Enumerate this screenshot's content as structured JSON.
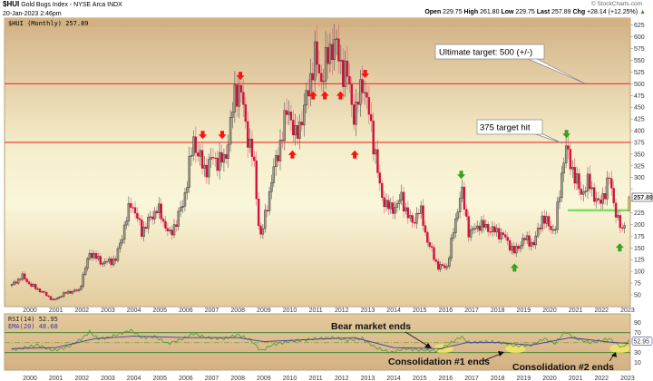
{
  "header": {
    "symbol": "$HUI",
    "description": "Gold Bugs Index - NYSE Arca INDX",
    "datetime": "20-Jan-2023 2:46pm",
    "copyright": "© StockCharts.com",
    "open_label": "Open",
    "open": "229.75",
    "high_label": "High",
    "high": "261.80",
    "low_label": "Low",
    "low": "229.75",
    "last_label": "Last",
    "last": "257.89",
    "chg_label": "Chg",
    "chg": "+28.14 (+12.25%)"
  },
  "legend": {
    "price": "$HUI (Monthly) 257.89",
    "rsi": "RSI(14) 52.95",
    "ema": "EMA(20) 48.68"
  },
  "callouts": {
    "ultimate": "Ultimate target: 500 (+/-)",
    "hit": "375 target hit",
    "bear": "Bear market ends",
    "cons1": "Consolidation #1 ends",
    "cons2": "Consolidation #2 ends"
  },
  "colors": {
    "up": "#a39d86",
    "down": "#d2103c",
    "target_line": "#f03030",
    "support_line": "#7ee05a",
    "rsi": "#4a9a2a",
    "ema": "#3b3aa0",
    "last": "#f0e070"
  },
  "chart_data": [
    {
      "type": "candlestick",
      "title": "$HUI (Monthly)",
      "period": "monthly",
      "ylim": [
        30,
        640
      ],
      "yticks": [
        50,
        75,
        100,
        125,
        150,
        175,
        200,
        225,
        250,
        275,
        300,
        325,
        350,
        375,
        400,
        425,
        450,
        475,
        500,
        525,
        550,
        575,
        600,
        625
      ],
      "xticks": [
        "2000",
        "2001",
        "2002",
        "2003",
        "2004",
        "2005",
        "2006",
        "2007",
        "2008",
        "2009",
        "2010",
        "2011",
        "2012",
        "2013",
        "2014",
        "2015",
        "2016",
        "2017",
        "2018",
        "2019",
        "2020",
        "2021",
        "2022",
        "2023"
      ],
      "last_value_label": "257.89",
      "last_bar": {
        "open": 229.75,
        "high": 261.8,
        "low": 229.75,
        "close": 257.89
      },
      "approx_close_anchors": [
        [
          1999.3,
          70
        ],
        [
          1999.7,
          90
        ],
        [
          2000.0,
          72
        ],
        [
          2000.5,
          55
        ],
        [
          2000.9,
          38
        ],
        [
          2001.4,
          55
        ],
        [
          2001.9,
          60
        ],
        [
          2002.3,
          140
        ],
        [
          2002.8,
          118
        ],
        [
          2003.3,
          125
        ],
        [
          2003.9,
          250
        ],
        [
          2004.3,
          185
        ],
        [
          2004.9,
          235
        ],
        [
          2005.4,
          175
        ],
        [
          2005.9,
          245
        ],
        [
          2006.3,
          380
        ],
        [
          2006.7,
          315
        ],
        [
          2007.0,
          340
        ],
        [
          2007.5,
          335
        ],
        [
          2007.9,
          480
        ],
        [
          2008.1,
          495
        ],
        [
          2008.3,
          410
        ],
        [
          2008.6,
          340
        ],
        [
          2008.85,
          170
        ],
        [
          2009.0,
          200
        ],
        [
          2009.3,
          295
        ],
        [
          2009.7,
          390
        ],
        [
          2009.95,
          455
        ],
        [
          2010.2,
          380
        ],
        [
          2010.6,
          455
        ],
        [
          2010.95,
          560
        ],
        [
          2011.2,
          510
        ],
        [
          2011.7,
          595
        ],
        [
          2011.95,
          540
        ],
        [
          2012.2,
          520
        ],
        [
          2012.5,
          425
        ],
        [
          2012.8,
          510
        ],
        [
          2013.0,
          450
        ],
        [
          2013.3,
          350
        ],
        [
          2013.5,
          262
        ],
        [
          2013.9,
          230
        ],
        [
          2014.3,
          255
        ],
        [
          2014.7,
          200
        ],
        [
          2015.0,
          235
        ],
        [
          2015.3,
          165
        ],
        [
          2015.7,
          110
        ],
        [
          2016.05,
          110
        ],
        [
          2016.6,
          275
        ],
        [
          2016.9,
          180
        ],
        [
          2017.3,
          200
        ],
        [
          2017.7,
          190
        ],
        [
          2018.2,
          178
        ],
        [
          2018.65,
          140
        ],
        [
          2019.0,
          170
        ],
        [
          2019.4,
          158
        ],
        [
          2019.7,
          215
        ],
        [
          2020.2,
          185
        ],
        [
          2020.45,
          300
        ],
        [
          2020.6,
          365
        ],
        [
          2020.9,
          315
        ],
        [
          2021.2,
          265
        ],
        [
          2021.5,
          290
        ],
        [
          2021.9,
          240
        ],
        [
          2022.3,
          297
        ],
        [
          2022.6,
          212
        ],
        [
          2022.8,
          185
        ],
        [
          2022.95,
          229.75
        ]
      ],
      "horizontal_lines": [
        {
          "value": 500,
          "label": "Ultimate target: 500 (+/-)"
        },
        {
          "value": 375,
          "label": "375 target hit"
        }
      ],
      "support_line": {
        "value": 230,
        "from": 2020.7,
        "to": 2023.2
      },
      "arrows": [
        {
          "t": 2006.65,
          "v": 386,
          "dir": "down",
          "color": "red"
        },
        {
          "t": 2007.4,
          "v": 386,
          "dir": "down",
          "color": "red"
        },
        {
          "t": 2008.1,
          "v": 512,
          "dir": "down",
          "color": "red"
        },
        {
          "t": 2012.9,
          "v": 516,
          "dir": "down",
          "color": "red"
        },
        {
          "t": 2010.1,
          "v": 354,
          "dir": "up",
          "color": "red"
        },
        {
          "t": 2010.9,
          "v": 480,
          "dir": "up",
          "color": "red"
        },
        {
          "t": 2011.35,
          "v": 480,
          "dir": "up",
          "color": "red"
        },
        {
          "t": 2011.95,
          "v": 480,
          "dir": "up",
          "color": "red"
        },
        {
          "t": 2012.5,
          "v": 354,
          "dir": "up",
          "color": "red"
        },
        {
          "t": 2016.6,
          "v": 301,
          "dir": "down",
          "color": "green"
        },
        {
          "t": 2020.65,
          "v": 388,
          "dir": "down",
          "color": "green"
        },
        {
          "t": 2018.65,
          "v": 113,
          "dir": "up",
          "color": "green"
        },
        {
          "t": 2022.7,
          "v": 156,
          "dir": "up",
          "color": "green"
        }
      ]
    },
    {
      "type": "line",
      "title": "RSI(14)",
      "ylim": [
        0,
        100
      ],
      "yticks": [
        10,
        30,
        50,
        70,
        90
      ],
      "levels": [
        30,
        50,
        70
      ],
      "last_value_label": "52.95",
      "series": [
        {
          "name": "RSI(14)",
          "points": [
            [
              1999.3,
              35
            ],
            [
              2000.3,
              45
            ],
            [
              2000.9,
              34
            ],
            [
              2001.5,
              42
            ],
            [
              2002.0,
              58
            ],
            [
              2002.3,
              72
            ],
            [
              2002.6,
              58
            ],
            [
              2003.0,
              60
            ],
            [
              2003.9,
              75
            ],
            [
              2004.3,
              60
            ],
            [
              2004.8,
              62
            ],
            [
              2005.3,
              48
            ],
            [
              2005.9,
              58
            ],
            [
              2006.3,
              68
            ],
            [
              2006.8,
              60
            ],
            [
              2007.5,
              58
            ],
            [
              2008.0,
              66
            ],
            [
              2008.5,
              55
            ],
            [
              2008.9,
              33
            ],
            [
              2009.3,
              45
            ],
            [
              2009.9,
              52
            ],
            [
              2010.5,
              55
            ],
            [
              2011.0,
              58
            ],
            [
              2011.7,
              60
            ],
            [
              2012.2,
              55
            ],
            [
              2012.8,
              58
            ],
            [
              2013.3,
              40
            ],
            [
              2013.9,
              30
            ],
            [
              2014.4,
              38
            ],
            [
              2015.0,
              35
            ],
            [
              2015.7,
              34
            ],
            [
              2016.6,
              62
            ],
            [
              2016.9,
              50
            ],
            [
              2017.5,
              52
            ],
            [
              2018.2,
              50
            ],
            [
              2018.7,
              43
            ],
            [
              2019.3,
              45
            ],
            [
              2019.8,
              58
            ],
            [
              2020.2,
              48
            ],
            [
              2020.6,
              72
            ],
            [
              2021.0,
              58
            ],
            [
              2021.6,
              50
            ],
            [
              2022.3,
              58
            ],
            [
              2022.8,
              40
            ],
            [
              2023.05,
              52.95
            ]
          ]
        },
        {
          "name": "EMA(20)",
          "points": [
            [
              1999.3,
              38
            ],
            [
              2001.0,
              40
            ],
            [
              2002.5,
              58
            ],
            [
              2004.0,
              63
            ],
            [
              2006.0,
              60
            ],
            [
              2008.0,
              60
            ],
            [
              2009.0,
              52
            ],
            [
              2011.5,
              58
            ],
            [
              2012.5,
              60
            ],
            [
              2014.0,
              40
            ],
            [
              2015.8,
              38
            ],
            [
              2016.8,
              50
            ],
            [
              2018.0,
              50
            ],
            [
              2019.3,
              45
            ],
            [
              2020.8,
              60
            ],
            [
              2022.5,
              50
            ],
            [
              2023.05,
              48.68
            ]
          ]
        }
      ],
      "highlights": [
        2015.9,
        2018.7,
        2022.7
      ]
    }
  ]
}
